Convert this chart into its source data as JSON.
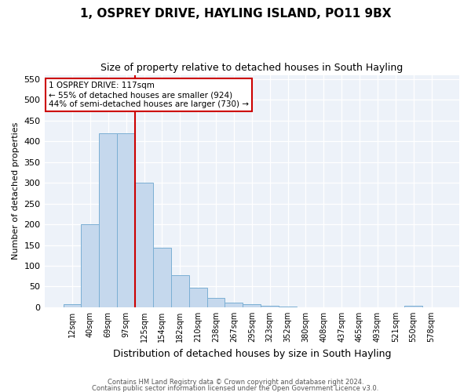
{
  "title1": "1, OSPREY DRIVE, HAYLING ISLAND, PO11 9BX",
  "title2": "Size of property relative to detached houses in South Hayling",
  "xlabel": "Distribution of detached houses by size in South Hayling",
  "ylabel": "Number of detached properties",
  "categories": [
    "12sqm",
    "40sqm",
    "69sqm",
    "97sqm",
    "125sqm",
    "154sqm",
    "182sqm",
    "210sqm",
    "238sqm",
    "267sqm",
    "295sqm",
    "323sqm",
    "352sqm",
    "380sqm",
    "408sqm",
    "437sqm",
    "465sqm",
    "493sqm",
    "521sqm",
    "550sqm",
    "578sqm"
  ],
  "values": [
    8,
    200,
    420,
    420,
    300,
    143,
    78,
    48,
    23,
    12,
    8,
    3,
    1,
    0,
    0,
    0,
    0,
    0,
    0,
    3,
    0
  ],
  "bar_color": "#c5d8ed",
  "bar_edge_color": "#7bafd4",
  "red_line_x": 3.5,
  "annotation_text": "1 OSPREY DRIVE: 117sqm\n← 55% of detached houses are smaller (924)\n44% of semi-detached houses are larger (730) →",
  "annotation_box_color": "#ffffff",
  "annotation_box_edge_color": "#cc0000",
  "ylim": [
    0,
    560
  ],
  "yticks": [
    0,
    50,
    100,
    150,
    200,
    250,
    300,
    350,
    400,
    450,
    500,
    550
  ],
  "footer1": "Contains HM Land Registry data © Crown copyright and database right 2024.",
  "footer2": "Contains public sector information licensed under the Open Government Licence v3.0.",
  "bg_color": "#edf2f9"
}
